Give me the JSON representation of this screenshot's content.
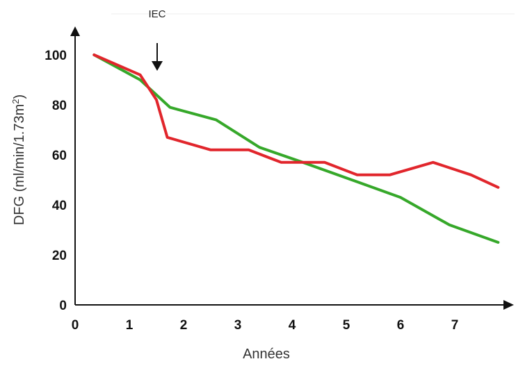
{
  "chart_data": {
    "type": "line",
    "title": "",
    "xlabel": "Années",
    "ylabel_main": "DFG (ml/min/1.73m",
    "ylabel_sup": "2",
    "ylabel_close": ")",
    "xlim": [
      0,
      7.9
    ],
    "ylim": [
      0,
      100
    ],
    "x_ticks": [
      0,
      1,
      2,
      3,
      4,
      5,
      6,
      7
    ],
    "y_ticks": [
      0,
      20,
      40,
      60,
      80,
      100
    ],
    "grid": false,
    "legend": "none",
    "annotation": {
      "label": "IEC",
      "x": 1.5
    },
    "series": [
      {
        "color": "#36a82a",
        "x": [
          0.35,
          1.2,
          1.75,
          2.6,
          3.4,
          4.2,
          5.1,
          6.0,
          6.9,
          7.8
        ],
        "y": [
          100,
          90,
          79,
          74,
          63,
          57,
          50,
          43,
          32,
          25
        ]
      },
      {
        "color": "#e1262c",
        "x": [
          0.35,
          1.2,
          1.5,
          1.7,
          2.5,
          3.2,
          3.8,
          4.6,
          5.2,
          5.8,
          6.6,
          7.3,
          7.8
        ],
        "y": [
          100,
          92,
          82,
          67,
          62,
          62,
          57,
          57,
          52,
          52,
          57,
          52,
          47
        ]
      }
    ]
  }
}
